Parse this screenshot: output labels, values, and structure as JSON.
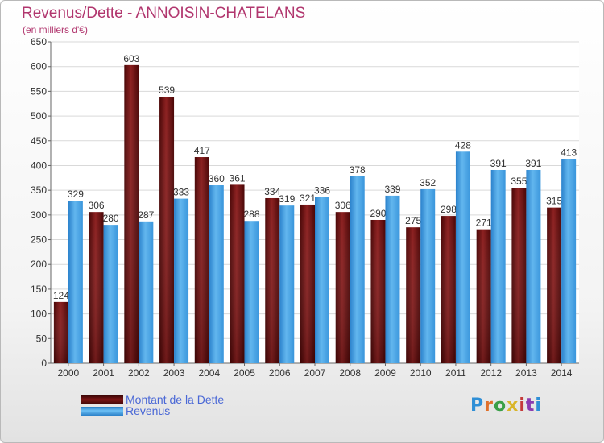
{
  "header": {
    "title": "Revenus/Dette - ANNOISIN-CHATELANS",
    "subtitle": "(en milliers d'€)"
  },
  "chart_data": {
    "type": "bar",
    "categories": [
      "2000",
      "2001",
      "2002",
      "2003",
      "2004",
      "2005",
      "2006",
      "2007",
      "2008",
      "2009",
      "2010",
      "2011",
      "2012",
      "2013",
      "2014"
    ],
    "series": [
      {
        "name": "Montant de la Dette",
        "color": "#7d1515",
        "values": [
          124,
          306,
          603,
          539,
          417,
          361,
          334,
          321,
          306,
          290,
          275,
          298,
          271,
          355,
          315
        ]
      },
      {
        "name": "Revenus",
        "color": "#4da3e3",
        "values": [
          329,
          280,
          287,
          333,
          360,
          288,
          319,
          336,
          378,
          339,
          352,
          428,
          391,
          391,
          413
        ]
      }
    ],
    "y_ticks": [
      "0",
      "50",
      "100",
      "150",
      "200",
      "250",
      "300",
      "350",
      "400",
      "450",
      "500",
      "550",
      "600",
      "650"
    ],
    "ylim": [
      0,
      650
    ],
    "grid": true,
    "legend_placement": "bottom-left",
    "data_labels": true
  },
  "legend": {
    "items": [
      {
        "label": "Montant de la Dette",
        "color": "#7d1515"
      },
      {
        "label": "Revenus",
        "color": "#4da3e3"
      }
    ]
  },
  "logo": {
    "text": "Proxiti"
  }
}
